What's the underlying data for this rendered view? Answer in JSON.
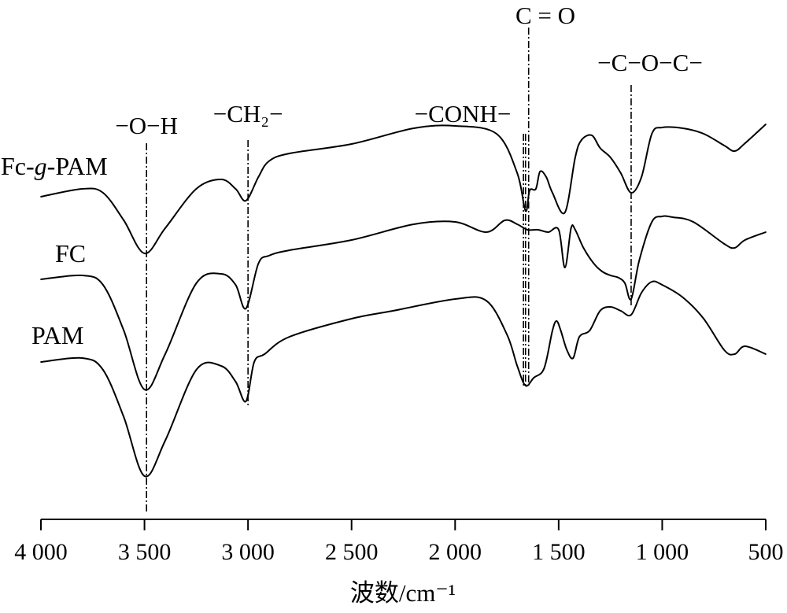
{
  "chart_data": {
    "type": "line",
    "xlabel": "波数/cm⁻¹",
    "xlim": [
      4000,
      500
    ],
    "x_reversed": true,
    "ylabel": "",
    "grid": false,
    "x_ticks": [
      4000,
      3500,
      3000,
      2500,
      2000,
      1500,
      1000,
      500
    ],
    "x_tick_labels": [
      "4 000",
      "3 500",
      "3 000",
      "2 500",
      "2 000",
      "1 500",
      "1 000",
      "500"
    ],
    "annotations": [
      {
        "label": "−O−H",
        "x": 3490
      },
      {
        "label": "−CH₂−",
        "x": 3000
      },
      {
        "label": "−CONH−",
        "x": 1660
      },
      {
        "label": "C = O",
        "x": 1645
      },
      {
        "label": "−C−O−C−",
        "x": 1150
      }
    ],
    "series": [
      {
        "name": "Fc-g-PAM",
        "points": [
          [
            4000,
            250
          ],
          [
            3800,
            240
          ],
          [
            3700,
            245
          ],
          [
            3600,
            280
          ],
          [
            3500,
            322
          ],
          [
            3400,
            290
          ],
          [
            3250,
            240
          ],
          [
            3130,
            228
          ],
          [
            3060,
            240
          ],
          [
            3010,
            255
          ],
          [
            2950,
            225
          ],
          [
            2900,
            205
          ],
          [
            2800,
            195
          ],
          [
            2500,
            183
          ],
          [
            2200,
            163
          ],
          [
            2000,
            160
          ],
          [
            1800,
            170
          ],
          [
            1700,
            220
          ],
          [
            1660,
            268
          ],
          [
            1640,
            242
          ],
          [
            1610,
            240
          ],
          [
            1590,
            218
          ],
          [
            1560,
            225
          ],
          [
            1530,
            245
          ],
          [
            1470,
            270
          ],
          [
            1420,
            200
          ],
          [
            1390,
            178
          ],
          [
            1340,
            172
          ],
          [
            1300,
            188
          ],
          [
            1250,
            200
          ],
          [
            1200,
            220
          ],
          [
            1150,
            245
          ],
          [
            1100,
            225
          ],
          [
            1050,
            170
          ],
          [
            1000,
            162
          ],
          [
            900,
            163
          ],
          [
            800,
            170
          ],
          [
            700,
            185
          ],
          [
            650,
            192
          ],
          [
            600,
            182
          ],
          [
            500,
            158
          ]
        ]
      },
      {
        "name": "FC",
        "points": [
          [
            4000,
            355
          ],
          [
            3800,
            350
          ],
          [
            3700,
            362
          ],
          [
            3600,
            420
          ],
          [
            3500,
            495
          ],
          [
            3400,
            450
          ],
          [
            3250,
            360
          ],
          [
            3130,
            348
          ],
          [
            3060,
            362
          ],
          [
            3010,
            392
          ],
          [
            2950,
            335
          ],
          [
            2900,
            325
          ],
          [
            2800,
            318
          ],
          [
            2500,
            305
          ],
          [
            2200,
            285
          ],
          [
            2000,
            282
          ],
          [
            1850,
            295
          ],
          [
            1760,
            280
          ],
          [
            1700,
            285
          ],
          [
            1650,
            292
          ],
          [
            1600,
            292
          ],
          [
            1550,
            295
          ],
          [
            1500,
            292
          ],
          [
            1470,
            340
          ],
          [
            1440,
            290
          ],
          [
            1420,
            292
          ],
          [
            1380,
            315
          ],
          [
            1330,
            335
          ],
          [
            1290,
            345
          ],
          [
            1250,
            350
          ],
          [
            1210,
            353
          ],
          [
            1180,
            360
          ],
          [
            1150,
            380
          ],
          [
            1110,
            330
          ],
          [
            1050,
            282
          ],
          [
            1000,
            275
          ],
          [
            950,
            276
          ],
          [
            850,
            282
          ],
          [
            700,
            310
          ],
          [
            650,
            315
          ],
          [
            600,
            305
          ],
          [
            500,
            295
          ]
        ]
      },
      {
        "name": "PAM",
        "points": [
          [
            4000,
            460
          ],
          [
            3800,
            455
          ],
          [
            3700,
            470
          ],
          [
            3600,
            530
          ],
          [
            3500,
            605
          ],
          [
            3400,
            560
          ],
          [
            3250,
            470
          ],
          [
            3130,
            465
          ],
          [
            3060,
            485
          ],
          [
            3010,
            510
          ],
          [
            2970,
            460
          ],
          [
            2920,
            450
          ],
          [
            2800,
            428
          ],
          [
            2500,
            405
          ],
          [
            2300,
            395
          ],
          [
            2000,
            380
          ],
          [
            1850,
            382
          ],
          [
            1750,
            425
          ],
          [
            1700,
            465
          ],
          [
            1660,
            490
          ],
          [
            1620,
            480
          ],
          [
            1570,
            468
          ],
          [
            1530,
            420
          ],
          [
            1510,
            408
          ],
          [
            1490,
            420
          ],
          [
            1460,
            445
          ],
          [
            1430,
            455
          ],
          [
            1400,
            428
          ],
          [
            1350,
            420
          ],
          [
            1300,
            395
          ],
          [
            1250,
            390
          ],
          [
            1200,
            395
          ],
          [
            1150,
            400
          ],
          [
            1100,
            372
          ],
          [
            1050,
            358
          ],
          [
            1000,
            362
          ],
          [
            900,
            378
          ],
          [
            800,
            405
          ],
          [
            700,
            445
          ],
          [
            650,
            450
          ],
          [
            600,
            440
          ],
          [
            500,
            450
          ]
        ]
      }
    ]
  }
}
